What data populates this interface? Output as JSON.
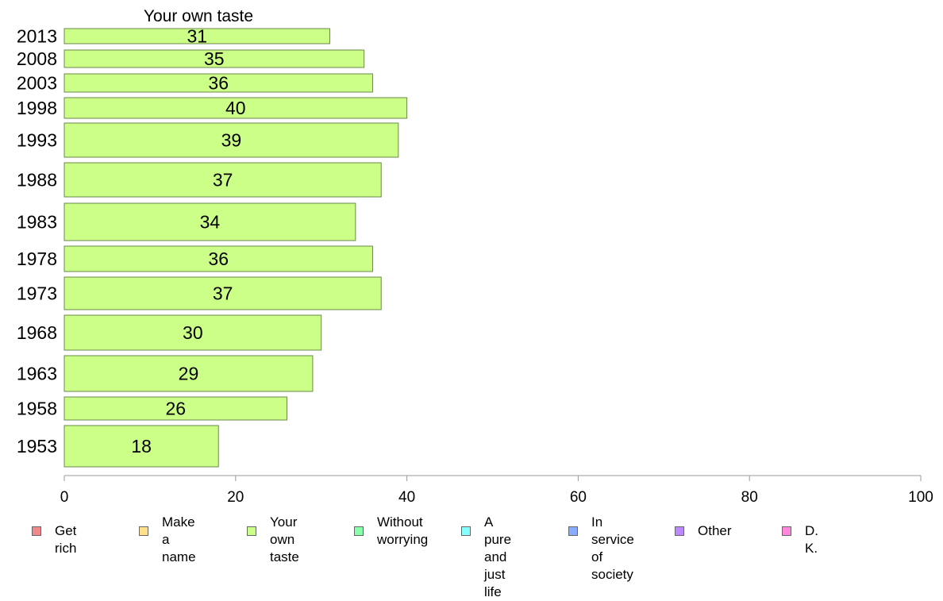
{
  "chart_data": {
    "type": "bar",
    "orientation": "horizontal",
    "title": "Your own taste",
    "categories": [
      "2013",
      "2008",
      "2003",
      "1998",
      "1993",
      "1988",
      "1983",
      "1978",
      "1973",
      "1968",
      "1963",
      "1958",
      "1953"
    ],
    "series": [
      {
        "name": "Your own taste",
        "values": [
          31,
          35,
          36,
          40,
          39,
          37,
          34,
          36,
          37,
          30,
          29,
          26,
          18
        ]
      }
    ],
    "xlim": [
      0,
      100
    ],
    "xticks": [
      0,
      20,
      40,
      60,
      80,
      100
    ],
    "grid": false,
    "bar_color": "#ccff88",
    "bar_border": "#6a8a4a",
    "legend_position": "bottom"
  },
  "legend": [
    {
      "label": "Get rich",
      "color": "#f08a8a"
    },
    {
      "label": "Make\na name",
      "color": "#ffe08a"
    },
    {
      "label": "Your own\ntaste",
      "color": "#ccff88"
    },
    {
      "label": "Without\nworrying",
      "color": "#88ffaa"
    },
    {
      "label": "A pure and\njust life",
      "color": "#88ffff"
    },
    {
      "label": "In service\nof society",
      "color": "#88aaff"
    },
    {
      "label": "Other",
      "color": "#bb88ff"
    },
    {
      "label": "D. K.",
      "color": "#ff88dd"
    }
  ]
}
